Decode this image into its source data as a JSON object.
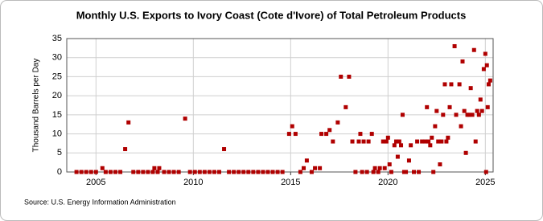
{
  "chart_data": {
    "type": "scatter",
    "title": "Monthly U.S. Exports to Ivory Coast (Cote d'Ivore) of Total Petroleum Products",
    "y_label": "Thousand Barrels per Day",
    "source": "Source: U.S. Energy Information Administration",
    "color": "#b00000",
    "grid": true,
    "xlim": [
      2003.5,
      2025.4
    ],
    "xticks": [
      2005,
      2010,
      2015,
      2020,
      2025
    ],
    "ylim": [
      0,
      35
    ],
    "yticks": [
      0,
      5,
      10,
      15,
      20,
      25,
      30,
      35
    ],
    "x": [
      2004.0,
      2004.25,
      2004.5,
      2004.75,
      2005.0,
      2005.33,
      2005.5,
      2005.75,
      2006.0,
      2006.25,
      2006.5,
      2006.67,
      2006.92,
      2007.17,
      2007.42,
      2007.67,
      2007.92,
      2008.0,
      2008.17,
      2008.25,
      2008.5,
      2008.75,
      2009.0,
      2009.25,
      2009.58,
      2009.83,
      2010.08,
      2010.33,
      2010.58,
      2010.83,
      2011.08,
      2011.33,
      2011.58,
      2011.83,
      2012.08,
      2012.33,
      2012.58,
      2012.83,
      2013.08,
      2013.33,
      2013.58,
      2013.83,
      2014.08,
      2014.33,
      2014.58,
      2014.92,
      2015.08,
      2015.25,
      2015.5,
      2015.67,
      2015.83,
      2016.08,
      2016.25,
      2016.5,
      2016.58,
      2016.83,
      2017.0,
      2017.17,
      2017.42,
      2017.58,
      2017.83,
      2018.0,
      2018.17,
      2018.33,
      2018.5,
      2018.58,
      2018.67,
      2018.75,
      2018.92,
      2019.0,
      2019.17,
      2019.25,
      2019.33,
      2019.5,
      2019.58,
      2019.75,
      2019.83,
      2019.92,
      2020.0,
      2020.08,
      2020.17,
      2020.33,
      2020.42,
      2020.5,
      2020.58,
      2020.67,
      2020.75,
      2020.83,
      2020.92,
      2021.08,
      2021.17,
      2021.33,
      2021.5,
      2021.58,
      2021.75,
      2021.92,
      2022.0,
      2022.08,
      2022.17,
      2022.25,
      2022.33,
      2022.42,
      2022.5,
      2022.58,
      2022.67,
      2022.75,
      2022.83,
      2022.92,
      2023.0,
      2023.08,
      2023.17,
      2023.25,
      2023.42,
      2023.5,
      2023.67,
      2023.75,
      2023.83,
      2023.92,
      2024.0,
      2024.08,
      2024.17,
      2024.25,
      2024.33,
      2024.42,
      2024.5,
      2024.58,
      2024.67,
      2024.75,
      2024.83,
      2024.92,
      2025.0,
      2025.04,
      2025.08,
      2025.12,
      2025.17,
      2025.25
    ],
    "y": [
      0,
      0,
      0,
      0,
      0,
      1,
      0,
      0,
      0,
      0,
      6,
      13,
      0,
      0,
      0,
      0,
      0,
      1,
      0,
      1,
      0,
      0,
      0,
      0,
      14,
      0,
      0,
      0,
      0,
      0,
      0,
      0,
      6,
      0,
      0,
      0,
      0,
      0,
      0,
      0,
      0,
      0,
      0,
      0,
      0,
      10,
      12,
      10,
      0,
      1,
      3,
      0,
      1,
      1,
      10,
      10,
      11,
      8,
      13,
      25,
      17,
      25,
      8,
      0,
      8,
      10,
      0,
      8,
      0,
      8,
      10,
      0,
      1,
      0,
      1,
      8,
      1,
      8,
      9,
      2,
      0,
      7,
      8,
      4,
      8,
      7,
      15,
      0,
      0,
      3,
      7,
      0,
      8,
      0,
      8,
      8,
      17,
      8,
      7,
      9,
      0,
      12,
      16,
      8,
      2,
      8,
      15,
      23,
      8,
      9,
      17,
      23,
      33,
      15,
      23,
      12,
      29,
      16,
      5,
      15,
      15,
      22,
      15,
      32,
      8,
      16,
      15,
      19,
      16,
      27,
      31,
      0,
      28,
      17,
      23,
      24
    ]
  }
}
